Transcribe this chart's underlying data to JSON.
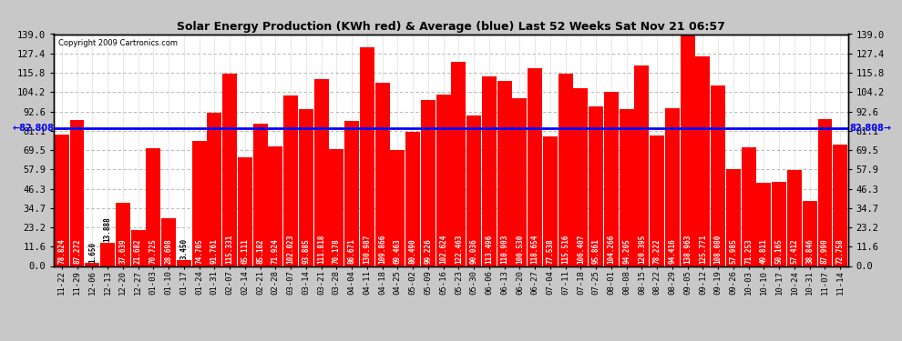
{
  "title": "Solar Energy Production (KWh red) & Average (blue) Last 52 Weeks Sat Nov 21 06:57",
  "copyright": "Copyright 2009 Cartronics.com",
  "average": 82.808,
  "bar_color": "#ff0000",
  "avg_line_color": "#0000ff",
  "background_color": "#ffffff",
  "outer_bg_color": "#c8c8c8",
  "ylim": [
    0,
    139.0
  ],
  "yticks": [
    0.0,
    11.6,
    23.2,
    34.7,
    46.3,
    57.9,
    69.5,
    81.1,
    92.6,
    104.2,
    115.8,
    127.4,
    139.0
  ],
  "categories": [
    "11-22",
    "11-29",
    "12-06",
    "12-13",
    "12-20",
    "12-27",
    "01-03",
    "01-10",
    "01-17",
    "01-24",
    "01-31",
    "02-07",
    "02-14",
    "02-21",
    "02-28",
    "03-07",
    "03-14",
    "03-21",
    "03-28",
    "04-04",
    "04-11",
    "04-18",
    "04-25",
    "05-02",
    "05-09",
    "05-16",
    "05-23",
    "05-30",
    "06-06",
    "06-13",
    "06-20",
    "06-27",
    "07-04",
    "07-11",
    "07-18",
    "07-25",
    "08-01",
    "08-08",
    "08-15",
    "08-22",
    "08-29",
    "09-05",
    "09-12",
    "09-19",
    "09-26",
    "10-03",
    "10-10",
    "10-17",
    "10-24",
    "10-31",
    "11-07",
    "11-14"
  ],
  "values": [
    78.824,
    87.272,
    1.65,
    13.888,
    37.639,
    21.682,
    70.725,
    28.698,
    3.45,
    74.705,
    91.761,
    115.331,
    65.111,
    85.182,
    71.924,
    102.023,
    93.885,
    111.818,
    70.178,
    86.671,
    130.987,
    109.866,
    69.463,
    80.49,
    99.226,
    102.624,
    122.463,
    90.036,
    113.496,
    110.903,
    100.53,
    118.654,
    77.538,
    115.516,
    106.407,
    95.861,
    104.266,
    94.205,
    120.395,
    78.222,
    94.416,
    138.963,
    125.771,
    108.08,
    57.985,
    71.253,
    49.811,
    50.165,
    57.412,
    38.846,
    87.99,
    72.758
  ]
}
